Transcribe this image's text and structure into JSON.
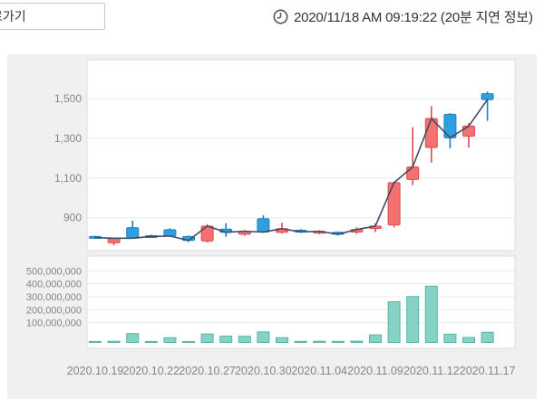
{
  "header": {
    "back_button_label": "로가기",
    "clock_icon": "clock-icon",
    "timestamp": "2020/11/18 AM 09:19:22 (20분 지연 정보)"
  },
  "chart_data": {
    "type": "candlestick",
    "title": "",
    "xlabel": "",
    "ylabel": "",
    "price_axis": {
      "tick_labels": [
        "1,500",
        "1,300",
        "1,100",
        "900"
      ],
      "tick_values": [
        1500,
        1300,
        1100,
        900
      ],
      "ylim": [
        735,
        1700
      ]
    },
    "volume_axis": {
      "tick_labels": [
        "500,000,000",
        "400,000,000",
        "300,000,000",
        "200,000,000",
        "100,000,000"
      ],
      "tick_values": [
        500000000,
        400000000,
        300000000,
        200000000,
        100000000
      ],
      "ylim": [
        0,
        530000000
      ]
    },
    "x_tick_labels": [
      "2020.10.19",
      "2020.10.22",
      "2020.10.27",
      "2020.10.30",
      "2020.11.04",
      "2020.11.09",
      "2020.11.12",
      "2020.11.17"
    ],
    "x_tick_indices": [
      0,
      3,
      6,
      9,
      12,
      15,
      18,
      21
    ],
    "grid": true,
    "overlay_line": "close",
    "candles": [
      {
        "date": "2020.10.19",
        "open": 806,
        "high": 810,
        "low": 796,
        "close": 800,
        "dir": "down",
        "volume": 4000000
      },
      {
        "date": "2020.10.20",
        "open": 774,
        "high": 800,
        "low": 762,
        "close": 797,
        "dir": "up",
        "volume": 6000000
      },
      {
        "date": "2020.10.21",
        "open": 850,
        "high": 886,
        "low": 794,
        "close": 797,
        "dir": "down",
        "volume": 65000000
      },
      {
        "date": "2020.10.22",
        "open": 810,
        "high": 815,
        "low": 801,
        "close": 806,
        "dir": "down",
        "volume": 4000000
      },
      {
        "date": "2020.10.23",
        "open": 840,
        "high": 847,
        "low": 804,
        "close": 808,
        "dir": "down",
        "volume": 33000000
      },
      {
        "date": "2020.10.26",
        "open": 806,
        "high": 811,
        "low": 778,
        "close": 786,
        "dir": "down",
        "volume": 3000000
      },
      {
        "date": "2020.10.27",
        "open": 783,
        "high": 868,
        "low": 776,
        "close": 858,
        "dir": "up",
        "volume": 62000000
      },
      {
        "date": "2020.10.28",
        "open": 843,
        "high": 873,
        "low": 804,
        "close": 827,
        "dir": "down",
        "volume": 45000000
      },
      {
        "date": "2020.10.29",
        "open": 817,
        "high": 838,
        "low": 809,
        "close": 832,
        "dir": "up",
        "volume": 44000000
      },
      {
        "date": "2020.10.30",
        "open": 895,
        "high": 913,
        "low": 824,
        "close": 828,
        "dir": "down",
        "volume": 78000000
      },
      {
        "date": "2020.11.02",
        "open": 827,
        "high": 875,
        "low": 821,
        "close": 845,
        "dir": "up",
        "volume": 33000000
      },
      {
        "date": "2020.11.03",
        "open": 837,
        "high": 843,
        "low": 824,
        "close": 829,
        "dir": "down",
        "volume": 5000000
      },
      {
        "date": "2020.11.04",
        "open": 823,
        "high": 837,
        "low": 817,
        "close": 832,
        "dir": "up",
        "volume": 6000000
      },
      {
        "date": "2020.11.05",
        "open": 827,
        "high": 831,
        "low": 811,
        "close": 817,
        "dir": "down",
        "volume": 5000000
      },
      {
        "date": "2020.11.06",
        "open": 828,
        "high": 852,
        "low": 819,
        "close": 841,
        "dir": "up",
        "volume": 7000000
      },
      {
        "date": "2020.11.09",
        "open": 846,
        "high": 872,
        "low": 828,
        "close": 858,
        "dir": "up",
        "volume": 55000000
      },
      {
        "date": "2020.11.10",
        "open": 864,
        "high": 1082,
        "low": 852,
        "close": 1077,
        "dir": "up",
        "volume": 310000000
      },
      {
        "date": "2020.11.11",
        "open": 1093,
        "high": 1356,
        "low": 1064,
        "close": 1156,
        "dir": "up",
        "volume": 350000000
      },
      {
        "date": "2020.11.12",
        "open": 1254,
        "high": 1462,
        "low": 1178,
        "close": 1400,
        "dir": "up",
        "volume": 430000000
      },
      {
        "date": "2020.11.13",
        "open": 1421,
        "high": 1427,
        "low": 1250,
        "close": 1303,
        "dir": "down",
        "volume": 60000000
      },
      {
        "date": "2020.11.16",
        "open": 1311,
        "high": 1377,
        "low": 1253,
        "close": 1362,
        "dir": "up",
        "volume": 35000000
      },
      {
        "date": "2020.11.17",
        "open": 1525,
        "high": 1536,
        "low": 1388,
        "close": 1495,
        "dir": "down",
        "volume": 75000000
      }
    ],
    "colors": {
      "up_fill": "#f57070",
      "up_border": "#dd4b4b",
      "down_fill": "#2e9fdf",
      "down_border": "#1e7fbf",
      "close_line": "#3f4c66",
      "volume_fill": "#85d3c7",
      "volume_border": "#58b4a7",
      "grid": "#e9e9e9",
      "panel_border": "#dcdcdc",
      "axis_text": "#858585",
      "card_bg": "#f0f0f0",
      "panel_bg": "#ffffff"
    }
  }
}
